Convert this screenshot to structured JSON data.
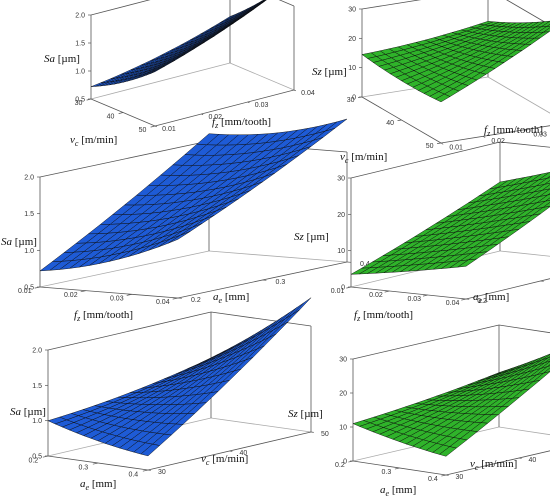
{
  "figure": {
    "background": "#ffffff"
  },
  "chart_data": [
    {
      "panel": "a1",
      "type": "surface",
      "color": "#1e5bd6",
      "x": {
        "var": "vc",
        "range": [
          30,
          50
        ],
        "ticks": [
          "30",
          "40",
          "50"
        ]
      },
      "y": {
        "var": "fz",
        "range": [
          0.01,
          0.04
        ],
        "ticks": [
          "0.01",
          "0.02",
          "0.03",
          "0.04"
        ]
      },
      "z": {
        "var": "Sa",
        "range": [
          0.5,
          2.0
        ],
        "ticks": [
          "0.5",
          "1.0",
          "1.5",
          "2.0"
        ]
      },
      "corners": {
        "x0y0": 0.72,
        "x1y0": 1.25,
        "x0y1": 1.05,
        "x1y1": 1.98
      },
      "cx": 0.22,
      "cy": 0.28,
      "labels": {
        "xlabel": {
          "i": "v",
          "sub": "c",
          "rest": " [m/min]"
        },
        "ylabel": {
          "i": "f",
          "sub": "z",
          "rest": " [mm/tooth]"
        },
        "zlabel": {
          "i": "Sa",
          "sub": "",
          "rest": " [µm]"
        }
      }
    },
    {
      "panel": "b1",
      "type": "surface",
      "color": "#2fb32a",
      "x": {
        "var": "vc",
        "range": [
          30,
          50
        ],
        "ticks": [
          "30",
          "40",
          "50"
        ]
      },
      "y": {
        "var": "fz",
        "range": [
          0.01,
          0.04
        ],
        "ticks": [
          "0.01",
          "0.02",
          "0.03",
          "0.04"
        ]
      },
      "z": {
        "var": "Sz",
        "range": [
          0,
          30
        ],
        "ticks": [
          "0",
          "10",
          "20",
          "30"
        ]
      },
      "corners": {
        "x0y0": 14.5,
        "x1y0": 10.5,
        "x0y1": 16.0,
        "x1y1": 29.0
      },
      "cx": 3.5,
      "cy": 3.0,
      "labels": {
        "xlabel": {
          "i": "v",
          "sub": "c",
          "rest": " [m/min]"
        },
        "ylabel": {
          "i": "f",
          "sub": "z",
          "rest": " [mm/tooth]"
        },
        "zlabel": {
          "i": "Sz",
          "sub": "",
          "rest": " [µm]"
        }
      }
    },
    {
      "panel": "a2",
      "type": "surface",
      "color": "#1e5bd6",
      "x": {
        "var": "fz",
        "range": [
          0.01,
          0.04
        ],
        "ticks": [
          "0.01",
          "0.02",
          "0.03",
          "0.04"
        ]
      },
      "y": {
        "var": "ae",
        "range": [
          0.2,
          0.4
        ],
        "ticks": [
          "0.2",
          "0.3",
          "0.4"
        ]
      },
      "z": {
        "var": "Sa",
        "range": [
          0.5,
          2.0
        ],
        "ticks": [
          "0.5",
          "1.0",
          "1.5",
          "2.0"
        ]
      },
      "corners": {
        "x0y0": 0.72,
        "x1y0": 0.95,
        "x0y1": 1.95,
        "x1y1": 1.95
      },
      "cx": 0.35,
      "cy": 0.15,
      "labels": {
        "xlabel": {
          "i": "f",
          "sub": "z",
          "rest": " [mm/tooth]"
        },
        "ylabel": {
          "i": "a",
          "sub": "e",
          "rest": " [mm]"
        },
        "zlabel": {
          "i": "Sa",
          "sub": "",
          "rest": " [µm]"
        }
      }
    },
    {
      "panel": "b2",
      "type": "surface",
      "color": "#2fb32a",
      "x": {
        "var": "fz",
        "range": [
          0.01,
          0.04
        ],
        "ticks": [
          "0.01",
          "0.02",
          "0.03",
          "0.04"
        ]
      },
      "y": {
        "var": "ae",
        "range": [
          0.2,
          0.4
        ],
        "ticks": [
          "0.2",
          "0.3",
          "0.4"
        ]
      },
      "z": {
        "var": "Sz",
        "range": [
          0,
          30
        ],
        "ticks": [
          "0",
          "10",
          "20",
          "30"
        ]
      },
      "corners": {
        "x0y0": 3.5,
        "x1y0": 8.0,
        "x0y1": 17.0,
        "x1y1": 26.0
      },
      "cx": 1.0,
      "cy": 2.0,
      "labels": {
        "xlabel": {
          "i": "f",
          "sub": "z",
          "rest": " [mm/tooth]"
        },
        "ylabel": {
          "i": "a",
          "sub": "e",
          "rest": " [mm]"
        },
        "zlabel": {
          "i": "Sz",
          "sub": "",
          "rest": " [µm]"
        }
      }
    },
    {
      "panel": "a3",
      "type": "surface",
      "color": "#1e5bd6",
      "x": {
        "var": "ae",
        "range": [
          0.2,
          0.4
        ],
        "ticks": [
          "0.2",
          "0.3",
          "0.4"
        ]
      },
      "y": {
        "var": "vc",
        "range": [
          30,
          50
        ],
        "ticks": [
          "30",
          "40",
          "50"
        ]
      },
      "z": {
        "var": "Sa",
        "range": [
          0.5,
          2.0
        ],
        "ticks": [
          "0.5",
          "1.0",
          "1.5",
          "2.0"
        ]
      },
      "corners": {
        "x0y0": 1.0,
        "x1y0": 0.55,
        "x0y1": 1.15,
        "x1y1": 2.05
      },
      "cx": 0.15,
      "cy": 0.2,
      "labels": {
        "xlabel": {
          "i": "a",
          "sub": "e",
          "rest": " [mm]"
        },
        "ylabel": {
          "i": "v",
          "sub": "c",
          "rest": " [m/min]"
        },
        "zlabel": {
          "i": "Sa",
          "sub": "",
          "rest": " [µm]"
        }
      }
    },
    {
      "panel": "b3",
      "type": "surface",
      "color": "#2fb32a",
      "x": {
        "var": "ae",
        "range": [
          0.2,
          0.4
        ],
        "ticks": [
          "0.2",
          "0.3",
          "0.4"
        ]
      },
      "y": {
        "var": "vc",
        "range": [
          30,
          50
        ],
        "ticks": [
          "30",
          "40",
          "50"
        ]
      },
      "z": {
        "var": "Sz",
        "range": [
          0,
          30
        ],
        "ticks": [
          "0",
          "10",
          "20",
          "30"
        ]
      },
      "corners": {
        "x0y0": 11.0,
        "x1y0": 3.5,
        "x0y1": 14.0,
        "x1y1": 27.0
      },
      "cx": 2.0,
      "cy": 2.0,
      "labels": {
        "xlabel": {
          "i": "a",
          "sub": "e",
          "rest": " [mm]"
        },
        "ylabel": {
          "i": "v",
          "sub": "c",
          "rest": " [m/min]"
        },
        "zlabel": {
          "i": "Sz",
          "sub": "",
          "rest": " [µm]"
        }
      }
    }
  ]
}
